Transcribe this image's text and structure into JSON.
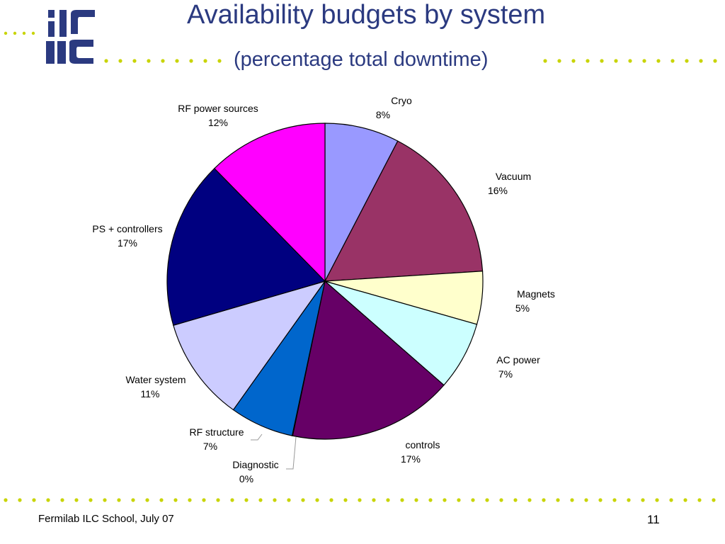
{
  "logo": {
    "text": "ilc",
    "color": "#2b3a80"
  },
  "title": "Availability budgets by system",
  "subtitle": "(percentage total downtime)",
  "footer": {
    "left": "Fermilab ILC School, July 07",
    "page": "11"
  },
  "colors": {
    "dots": "#c8d400",
    "title": "#2b3a80"
  },
  "chart_data": {
    "type": "pie",
    "slices": [
      {
        "label": "Cryo",
        "pct_text": "8%",
        "value": 7.6,
        "color": "#9999ff"
      },
      {
        "label": "Vacuum",
        "pct_text": "16%",
        "value": 16.3,
        "color": "#993366"
      },
      {
        "label": "Magnets",
        "pct_text": "5%",
        "value": 5.4,
        "color": "#ffffcc"
      },
      {
        "label": "AC power",
        "pct_text": "7%",
        "value": 7.0,
        "color": "#ccffff"
      },
      {
        "label": "controls",
        "pct_text": "17%",
        "value": 16.8,
        "color": "#660066"
      },
      {
        "label": "Diagnostic",
        "pct_text": "0%",
        "value": 0.05,
        "color": "#ff8080"
      },
      {
        "label": "RF structure",
        "pct_text": "7%",
        "value": 6.5,
        "color": "#0066cc"
      },
      {
        "label": "Water system",
        "pct_text": "11%",
        "value": 10.6,
        "color": "#ccccff"
      },
      {
        "label": "PS + controllers",
        "pct_text": "17%",
        "value": 17.1,
        "color": "#000080"
      },
      {
        "label": "RF power sources",
        "pct_text": "12%",
        "value": 12.3,
        "color": "#ff00ff"
      }
    ]
  }
}
